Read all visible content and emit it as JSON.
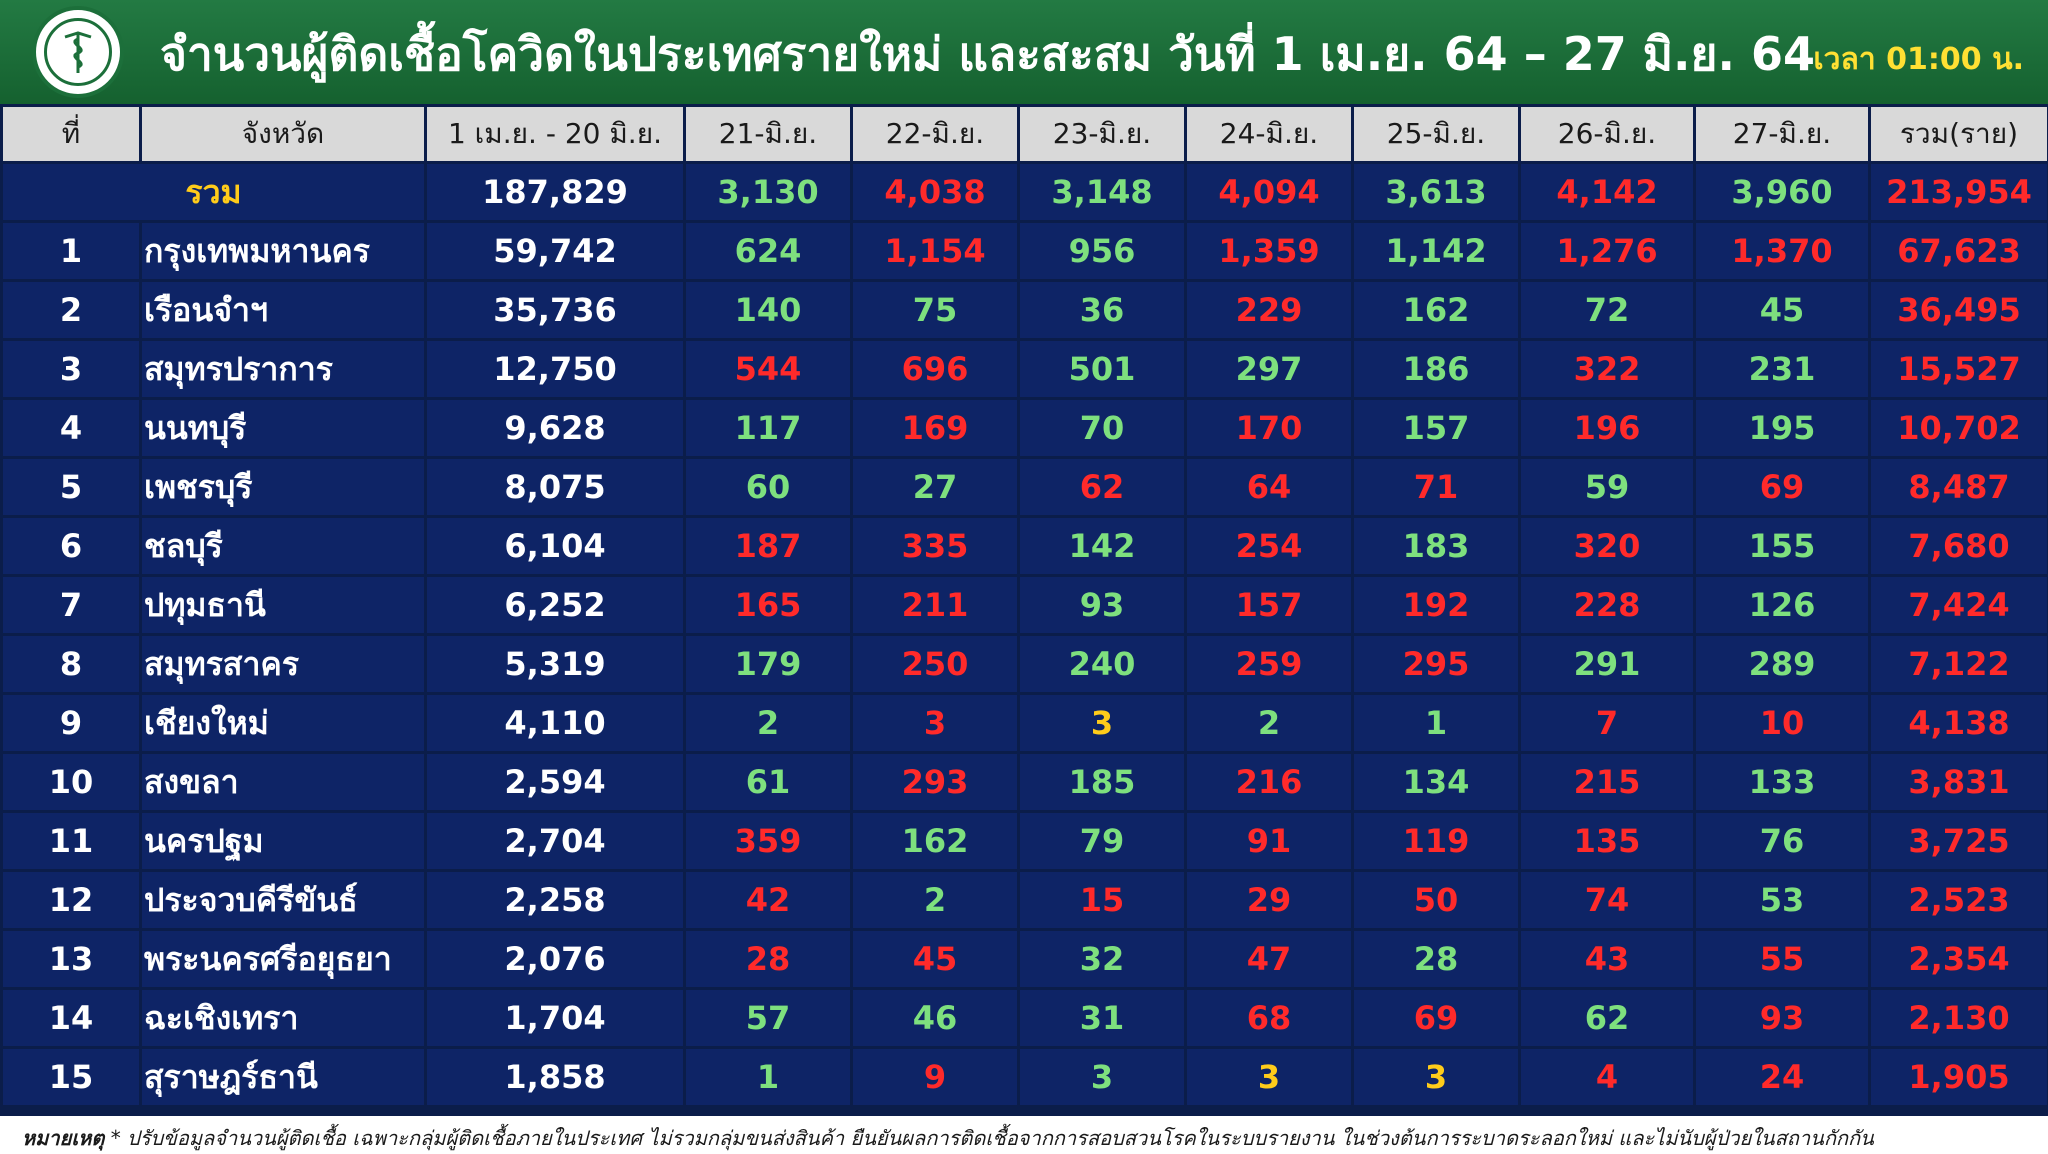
{
  "header": {
    "title": "จำนวนผู้ติดเชื้อโควิดในประเทศรายใหม่ และสะสม วันที่ 1 เม.ย. 64 – 27 มิ.ย. 64",
    "time": "เวลา 01:00 น.",
    "logo": "ministry-of-public-health-logo"
  },
  "table": {
    "columns": [
      "ที่",
      "จังหวัด",
      "1 เม.ย. - 20 มิ.ย.",
      "21-มิ.ย.",
      "22-มิ.ย.",
      "23-มิ.ย.",
      "24-มิ.ย.",
      "25-มิ.ย.",
      "26-มิ.ย.",
      "27-มิ.ย.",
      "รวม(ราย)"
    ],
    "total": {
      "label": "รวม",
      "cells": [
        {
          "v": "187,829",
          "c": "white"
        },
        {
          "v": "3,130",
          "c": "green"
        },
        {
          "v": "4,038",
          "c": "red"
        },
        {
          "v": "3,148",
          "c": "green"
        },
        {
          "v": "4,094",
          "c": "red"
        },
        {
          "v": "3,613",
          "c": "green"
        },
        {
          "v": "4,142",
          "c": "red"
        },
        {
          "v": "3,960",
          "c": "green"
        },
        {
          "v": "213,954",
          "c": "red"
        }
      ]
    },
    "rows": [
      {
        "no": "1",
        "province": "กรุงเทพมหานคร",
        "cells": [
          {
            "v": "59,742",
            "c": "white"
          },
          {
            "v": "624",
            "c": "green"
          },
          {
            "v": "1,154",
            "c": "red"
          },
          {
            "v": "956",
            "c": "green"
          },
          {
            "v": "1,359",
            "c": "red"
          },
          {
            "v": "1,142",
            "c": "green"
          },
          {
            "v": "1,276",
            "c": "red"
          },
          {
            "v": "1,370",
            "c": "red"
          },
          {
            "v": "67,623",
            "c": "red"
          }
        ]
      },
      {
        "no": "2",
        "province": "เรือนจำฯ",
        "cells": [
          {
            "v": "35,736",
            "c": "white"
          },
          {
            "v": "140",
            "c": "green"
          },
          {
            "v": "75",
            "c": "green"
          },
          {
            "v": "36",
            "c": "green"
          },
          {
            "v": "229",
            "c": "red"
          },
          {
            "v": "162",
            "c": "green"
          },
          {
            "v": "72",
            "c": "green"
          },
          {
            "v": "45",
            "c": "green"
          },
          {
            "v": "36,495",
            "c": "red"
          }
        ]
      },
      {
        "no": "3",
        "province": "สมุทรปราการ",
        "cells": [
          {
            "v": "12,750",
            "c": "white"
          },
          {
            "v": "544",
            "c": "red"
          },
          {
            "v": "696",
            "c": "red"
          },
          {
            "v": "501",
            "c": "green"
          },
          {
            "v": "297",
            "c": "green"
          },
          {
            "v": "186",
            "c": "green"
          },
          {
            "v": "322",
            "c": "red"
          },
          {
            "v": "231",
            "c": "green"
          },
          {
            "v": "15,527",
            "c": "red"
          }
        ]
      },
      {
        "no": "4",
        "province": "นนทบุรี",
        "cells": [
          {
            "v": "9,628",
            "c": "white"
          },
          {
            "v": "117",
            "c": "green"
          },
          {
            "v": "169",
            "c": "red"
          },
          {
            "v": "70",
            "c": "green"
          },
          {
            "v": "170",
            "c": "red"
          },
          {
            "v": "157",
            "c": "green"
          },
          {
            "v": "196",
            "c": "red"
          },
          {
            "v": "195",
            "c": "green"
          },
          {
            "v": "10,702",
            "c": "red"
          }
        ]
      },
      {
        "no": "5",
        "province": "เพชรบุรี",
        "cells": [
          {
            "v": "8,075",
            "c": "white"
          },
          {
            "v": "60",
            "c": "green"
          },
          {
            "v": "27",
            "c": "green"
          },
          {
            "v": "62",
            "c": "red"
          },
          {
            "v": "64",
            "c": "red"
          },
          {
            "v": "71",
            "c": "red"
          },
          {
            "v": "59",
            "c": "green"
          },
          {
            "v": "69",
            "c": "red"
          },
          {
            "v": "8,487",
            "c": "red"
          }
        ]
      },
      {
        "no": "6",
        "province": "ชลบุรี",
        "cells": [
          {
            "v": "6,104",
            "c": "white"
          },
          {
            "v": "187",
            "c": "red"
          },
          {
            "v": "335",
            "c": "red"
          },
          {
            "v": "142",
            "c": "green"
          },
          {
            "v": "254",
            "c": "red"
          },
          {
            "v": "183",
            "c": "green"
          },
          {
            "v": "320",
            "c": "red"
          },
          {
            "v": "155",
            "c": "green"
          },
          {
            "v": "7,680",
            "c": "red"
          }
        ]
      },
      {
        "no": "7",
        "province": "ปทุมธานี",
        "cells": [
          {
            "v": "6,252",
            "c": "white"
          },
          {
            "v": "165",
            "c": "red"
          },
          {
            "v": "211",
            "c": "red"
          },
          {
            "v": "93",
            "c": "green"
          },
          {
            "v": "157",
            "c": "red"
          },
          {
            "v": "192",
            "c": "red"
          },
          {
            "v": "228",
            "c": "red"
          },
          {
            "v": "126",
            "c": "green"
          },
          {
            "v": "7,424",
            "c": "red"
          }
        ]
      },
      {
        "no": "8",
        "province": "สมุทรสาคร",
        "cells": [
          {
            "v": "5,319",
            "c": "white"
          },
          {
            "v": "179",
            "c": "green"
          },
          {
            "v": "250",
            "c": "red"
          },
          {
            "v": "240",
            "c": "green"
          },
          {
            "v": "259",
            "c": "red"
          },
          {
            "v": "295",
            "c": "red"
          },
          {
            "v": "291",
            "c": "green"
          },
          {
            "v": "289",
            "c": "green"
          },
          {
            "v": "7,122",
            "c": "red"
          }
        ]
      },
      {
        "no": "9",
        "province": "เชียงใหม่",
        "cells": [
          {
            "v": "4,110",
            "c": "white"
          },
          {
            "v": "2",
            "c": "green"
          },
          {
            "v": "3",
            "c": "red"
          },
          {
            "v": "3",
            "c": "yellow"
          },
          {
            "v": "2",
            "c": "green"
          },
          {
            "v": "1",
            "c": "green"
          },
          {
            "v": "7",
            "c": "red"
          },
          {
            "v": "10",
            "c": "red"
          },
          {
            "v": "4,138",
            "c": "red"
          }
        ]
      },
      {
        "no": "10",
        "province": "สงขลา",
        "cells": [
          {
            "v": "2,594",
            "c": "white"
          },
          {
            "v": "61",
            "c": "green"
          },
          {
            "v": "293",
            "c": "red"
          },
          {
            "v": "185",
            "c": "green"
          },
          {
            "v": "216",
            "c": "red"
          },
          {
            "v": "134",
            "c": "green"
          },
          {
            "v": "215",
            "c": "red"
          },
          {
            "v": "133",
            "c": "green"
          },
          {
            "v": "3,831",
            "c": "red"
          }
        ]
      },
      {
        "no": "11",
        "province": "นครปฐม",
        "cells": [
          {
            "v": "2,704",
            "c": "white"
          },
          {
            "v": "359",
            "c": "red"
          },
          {
            "v": "162",
            "c": "green"
          },
          {
            "v": "79",
            "c": "green"
          },
          {
            "v": "91",
            "c": "red"
          },
          {
            "v": "119",
            "c": "red"
          },
          {
            "v": "135",
            "c": "red"
          },
          {
            "v": "76",
            "c": "green"
          },
          {
            "v": "3,725",
            "c": "red"
          }
        ]
      },
      {
        "no": "12",
        "province": "ประจวบคีรีขันธ์",
        "cells": [
          {
            "v": "2,258",
            "c": "white"
          },
          {
            "v": "42",
            "c": "red"
          },
          {
            "v": "2",
            "c": "green"
          },
          {
            "v": "15",
            "c": "red"
          },
          {
            "v": "29",
            "c": "red"
          },
          {
            "v": "50",
            "c": "red"
          },
          {
            "v": "74",
            "c": "red"
          },
          {
            "v": "53",
            "c": "green"
          },
          {
            "v": "2,523",
            "c": "red"
          }
        ]
      },
      {
        "no": "13",
        "province": "พระนครศรีอยุธยา",
        "cells": [
          {
            "v": "2,076",
            "c": "white"
          },
          {
            "v": "28",
            "c": "red"
          },
          {
            "v": "45",
            "c": "red"
          },
          {
            "v": "32",
            "c": "green"
          },
          {
            "v": "47",
            "c": "red"
          },
          {
            "v": "28",
            "c": "green"
          },
          {
            "v": "43",
            "c": "red"
          },
          {
            "v": "55",
            "c": "red"
          },
          {
            "v": "2,354",
            "c": "red"
          }
        ]
      },
      {
        "no": "14",
        "province": "ฉะเชิงเทรา",
        "cells": [
          {
            "v": "1,704",
            "c": "white"
          },
          {
            "v": "57",
            "c": "green"
          },
          {
            "v": "46",
            "c": "green"
          },
          {
            "v": "31",
            "c": "green"
          },
          {
            "v": "68",
            "c": "red"
          },
          {
            "v": "69",
            "c": "red"
          },
          {
            "v": "62",
            "c": "green"
          },
          {
            "v": "93",
            "c": "red"
          },
          {
            "v": "2,130",
            "c": "red"
          }
        ]
      },
      {
        "no": "15",
        "province": "สุราษฎร์ธานี",
        "cells": [
          {
            "v": "1,858",
            "c": "white"
          },
          {
            "v": "1",
            "c": "green"
          },
          {
            "v": "9",
            "c": "red"
          },
          {
            "v": "3",
            "c": "green"
          },
          {
            "v": "3",
            "c": "yellow"
          },
          {
            "v": "3",
            "c": "yellow"
          },
          {
            "v": "4",
            "c": "red"
          },
          {
            "v": "24",
            "c": "red"
          },
          {
            "v": "1,905",
            "c": "red"
          }
        ]
      }
    ]
  },
  "footnote": {
    "label": "หมายเหตุ",
    "text": "* ปรับข้อมูลจำนวนผู้ติดเชื้อ เฉพาะกลุ่มผู้ติดเชื้อภายในประเทศ ไม่รวมกลุ่มขนส่งสินค้า ยืนยันผลการติดเชื้อจากการสอบสวนโรคในระบบรายงาน ในช่วงต้นการระบาดระลอกใหม่ และไม่นับผู้ป่วยในสถานกักกัน"
  },
  "colors": {
    "header_bg": "#1c6f3a",
    "table_bg": "#0e2466",
    "header_cell_bg": "#d9d9d9",
    "green": "#7ee07e",
    "red": "#ff2a2a",
    "yellow": "#ffcc1a"
  }
}
